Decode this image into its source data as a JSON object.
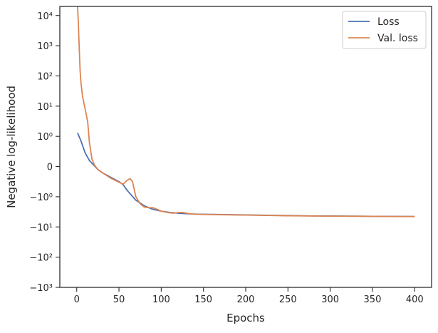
{
  "chart_data": {
    "type": "line",
    "xlabel": "Epochs",
    "ylabel": "Negative log-likelihood",
    "yscale": "symlog",
    "xlim": [
      -20,
      420
    ],
    "ylim": [
      -1000,
      20000
    ],
    "grid": false,
    "legend_position": "top-right",
    "x_ticks": [
      0,
      50,
      100,
      150,
      200,
      250,
      300,
      350,
      400
    ],
    "x_tick_labels": [
      "0",
      "50",
      "100",
      "150",
      "200",
      "250",
      "300",
      "350",
      "400"
    ],
    "y_ticks": [
      -1000,
      -100,
      -10,
      -1,
      0,
      1,
      10,
      100,
      1000,
      10000
    ],
    "y_tick_labels": [
      "−10³",
      "−10²",
      "−10¹",
      "−10⁰",
      "0",
      "10⁰",
      "10¹",
      "10²",
      "10³",
      "10⁴"
    ],
    "series": [
      {
        "name": "Loss",
        "color": "#4c72b0",
        "x": [
          1,
          5,
          10,
          15,
          20,
          25,
          30,
          40,
          50,
          55,
          60,
          70,
          80,
          90,
          100,
          110,
          120,
          130,
          140,
          150,
          175,
          200,
          225,
          250,
          275,
          300,
          325,
          350,
          375,
          400
        ],
        "y": [
          1.3,
          0.85,
          0.45,
          0.2,
          0.05,
          -0.1,
          -0.2,
          -0.35,
          -0.5,
          -0.6,
          -0.8,
          -1.3,
          -2.0,
          -2.6,
          -3.0,
          -3.3,
          -3.5,
          -3.65,
          -3.75,
          -3.8,
          -3.9,
          -4.0,
          -4.1,
          -4.2,
          -4.3,
          -4.35,
          -4.4,
          -4.45,
          -4.48,
          -4.5
        ]
      },
      {
        "name": "Val. loss",
        "color": "#dd8452",
        "x": [
          1,
          2,
          3,
          4,
          5,
          7,
          10,
          13,
          15,
          18,
          21,
          25,
          30,
          40,
          50,
          55,
          60,
          63,
          66,
          70,
          75,
          80,
          85,
          90,
          95,
          100,
          105,
          110,
          115,
          120,
          125,
          130,
          135,
          140,
          150,
          175,
          200,
          225,
          250,
          275,
          300,
          325,
          350,
          375,
          400
        ],
        "y": [
          20000,
          5000,
          800,
          150,
          60,
          20,
          8,
          3,
          0.8,
          0.25,
          0.05,
          -0.1,
          -0.2,
          -0.38,
          -0.52,
          -0.58,
          -0.45,
          -0.4,
          -0.5,
          -1.0,
          -1.7,
          -2.2,
          -2.3,
          -2.3,
          -2.6,
          -3.0,
          -3.2,
          -3.4,
          -3.5,
          -3.35,
          -3.3,
          -3.5,
          -3.7,
          -3.78,
          -3.85,
          -3.95,
          -4.05,
          -4.15,
          -4.25,
          -4.32,
          -4.38,
          -4.42,
          -4.45,
          -4.5,
          -4.52
        ]
      }
    ]
  }
}
